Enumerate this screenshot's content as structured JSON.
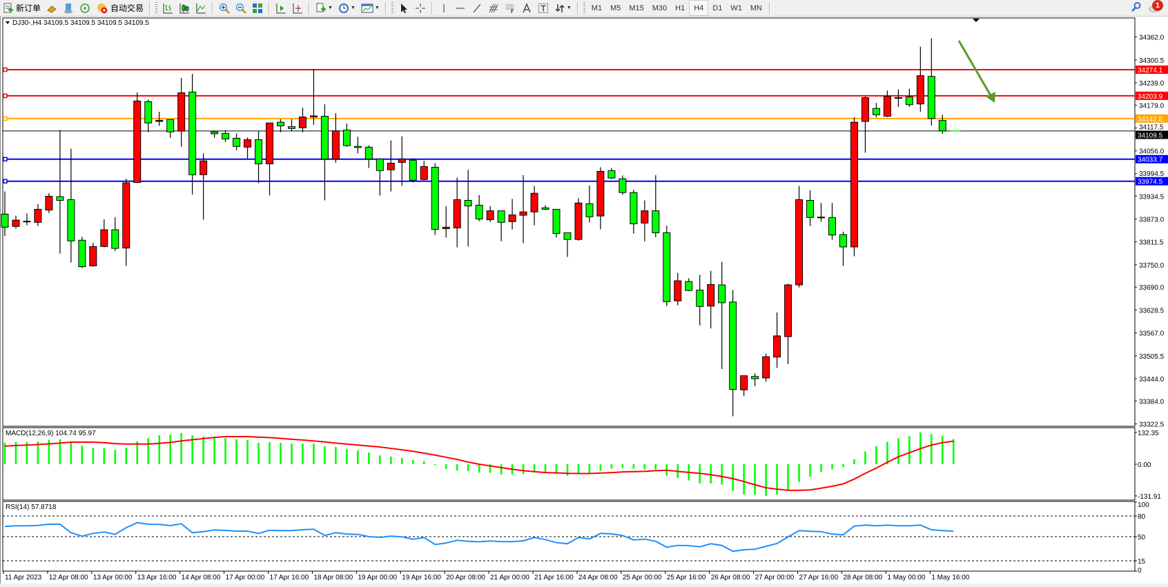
{
  "toolbar": {
    "new_order_label": "新订单",
    "auto_trade_label": "自动交易",
    "timeframes": [
      "M1",
      "M5",
      "M15",
      "M30",
      "H1",
      "H4",
      "D1",
      "W1",
      "MN"
    ],
    "active_timeframe": "H4",
    "notification_count": "1",
    "icons": [
      "new-order-icon",
      "gold-icon",
      "history-icon",
      "signals-icon",
      "auto-trade-icon",
      "bar-chart-icon",
      "candlestick-icon",
      "line-chart-icon",
      "zoom-in-icon",
      "zoom-out-icon",
      "tile-windows-icon",
      "auto-scroll-icon",
      "chart-shift-icon",
      "indicators-icon",
      "periods-icon",
      "templates-icon",
      "cursor-icon",
      "crosshair-icon",
      "vertical-line-icon",
      "horizontal-line-icon",
      "trendline-icon",
      "fibonacci-icon",
      "fibo-fan-icon",
      "text-icon",
      "text-label-icon",
      "arrows-icon",
      "search-icon",
      "notification-icon"
    ]
  },
  "chart_header": {
    "symbol": "DJ30-,H4",
    "ohlc": "34109.5 34109.5 34109.5 34109.5"
  },
  "price_axis": {
    "ticks": [
      "34362.0",
      "34300.5",
      "34239.0",
      "34179.0",
      "34117.5",
      "34056.0",
      "33994.5",
      "33934.5",
      "33873.0",
      "33811.5",
      "33750.0",
      "33690.0",
      "33628.5",
      "33567.0",
      "33505.5",
      "33444.0",
      "33384.0",
      "33322.5"
    ]
  },
  "levels": [
    {
      "value": "34274.1",
      "color": "#ff0000"
    },
    {
      "value": "34203.9",
      "color": "#ff0000"
    },
    {
      "value": "34142.8",
      "color": "#ffa500"
    },
    {
      "value": "34109.5",
      "color": "#000000"
    },
    {
      "value": "34033.7",
      "color": "#0000ff"
    },
    {
      "value": "33974.5",
      "color": "#0000ff"
    }
  ],
  "colors": {
    "bull": "#ff0000",
    "bear": "#00ff00",
    "rsi": "#1e90ff",
    "signal": "#ff0000",
    "histogram": "#00ff00",
    "arrow": "#5a9a2a"
  },
  "time_axis": [
    "11 Apr 2023",
    "12 Apr 08:00",
    "13 Apr 00:00",
    "13 Apr 16:00",
    "14 Apr 08:00",
    "17 Apr 00:00",
    "17 Apr 16:00",
    "18 Apr 08:00",
    "19 Apr 00:00",
    "19 Apr 16:00",
    "20 Apr 08:00",
    "21 Apr 00:00",
    "21 Apr 16:00",
    "24 Apr 08:00",
    "25 Apr 00:00",
    "25 Apr 16:00",
    "26 Apr 08:00",
    "27 Apr 00:00",
    "27 Apr 16:00",
    "28 Apr 08:00",
    "1 May 00:00",
    "1 May 16:00"
  ],
  "macd": {
    "label": "MACD(12,26,9) 104.74 95.97",
    "axis": [
      "132.35",
      "0.00",
      "-131.91"
    ]
  },
  "rsi": {
    "label": "RSI(14) 57.8718",
    "axis": [
      "100",
      "80",
      "50",
      "15",
      "0"
    ],
    "levels": [
      80,
      50,
      15
    ]
  },
  "chart_data": {
    "type": "candlestick",
    "ylim": [
      33322.5,
      34362.0
    ],
    "ohlc": [
      [
        33886,
        33947,
        33827,
        33851
      ],
      [
        33853,
        33882,
        33847,
        33870
      ],
      [
        33867,
        33888,
        33856,
        33867
      ],
      [
        33864,
        33913,
        33854,
        33899
      ],
      [
        33897,
        33942,
        33889,
        33934
      ],
      [
        33933,
        34112,
        33780,
        33923
      ],
      [
        33925,
        34062,
        33756,
        33814
      ],
      [
        33816,
        33825,
        33741,
        33745
      ],
      [
        33747,
        33809,
        33745,
        33799
      ],
      [
        33799,
        33872,
        33797,
        33844
      ],
      [
        33844,
        33878,
        33787,
        33794
      ],
      [
        33795,
        33981,
        33747,
        33970
      ],
      [
        33971,
        34213,
        33971,
        34190
      ],
      [
        34188,
        34194,
        34106,
        34131
      ],
      [
        34135,
        34161,
        34123,
        34138
      ],
      [
        34140,
        34140,
        34091,
        34107
      ],
      [
        34109,
        34252,
        34067,
        34212
      ],
      [
        34214,
        34263,
        33939,
        33992
      ],
      [
        33992,
        34049,
        33871,
        34029
      ],
      [
        34107,
        34107,
        34091,
        34102
      ],
      [
        34103,
        34112,
        34080,
        34088
      ],
      [
        34090,
        34103,
        34058,
        34068
      ],
      [
        34066,
        34092,
        34035,
        34086
      ],
      [
        34086,
        34110,
        33969,
        34021
      ],
      [
        34021,
        34131,
        33936,
        34131
      ],
      [
        34133,
        34141,
        34106,
        34123
      ],
      [
        34121,
        34141,
        34109,
        34116
      ],
      [
        34118,
        34172,
        34106,
        34147
      ],
      [
        34147,
        34276,
        34126,
        34150
      ],
      [
        34149,
        34181,
        33923,
        34034
      ],
      [
        34034,
        34157,
        34024,
        34110
      ],
      [
        34112,
        34129,
        34067,
        34070
      ],
      [
        34068,
        34094,
        34049,
        34065
      ],
      [
        34066,
        34071,
        34010,
        34034
      ],
      [
        34034,
        34036,
        33936,
        34003
      ],
      [
        34005,
        34084,
        33947,
        34023
      ],
      [
        34025,
        34095,
        33962,
        34034
      ],
      [
        34031,
        34031,
        33971,
        33977
      ],
      [
        33979,
        34029,
        33977,
        34014
      ],
      [
        34012,
        34023,
        33830,
        33845
      ],
      [
        33847,
        33907,
        33823,
        33851
      ],
      [
        33849,
        33984,
        33797,
        33925
      ],
      [
        33923,
        34005,
        33799,
        33908
      ],
      [
        33910,
        33937,
        33867,
        33873
      ],
      [
        33871,
        33908,
        33865,
        33895
      ],
      [
        33895,
        33895,
        33813,
        33864
      ],
      [
        33866,
        33927,
        33845,
        33884
      ],
      [
        33883,
        33991,
        33808,
        33892
      ],
      [
        33892,
        33962,
        33856,
        33942
      ],
      [
        33903,
        33910,
        33897,
        33899
      ],
      [
        33899,
        33899,
        33823,
        33834
      ],
      [
        33836,
        33836,
        33771,
        33818
      ],
      [
        33818,
        33929,
        33815,
        33916
      ],
      [
        33914,
        33963,
        33864,
        33879
      ],
      [
        33881,
        34012,
        33845,
        34001
      ],
      [
        34003,
        34010,
        33980,
        33983
      ],
      [
        33981,
        33990,
        33938,
        33944
      ],
      [
        33944,
        33952,
        33834,
        33860
      ],
      [
        33862,
        33923,
        33813,
        33895
      ],
      [
        33895,
        33991,
        33824,
        33836
      ],
      [
        33836,
        33855,
        33639,
        33651
      ],
      [
        33653,
        33728,
        33641,
        33707
      ],
      [
        33705,
        33714,
        33679,
        33681
      ],
      [
        33682,
        33723,
        33587,
        33638
      ],
      [
        33639,
        33734,
        33579,
        33697
      ],
      [
        33696,
        33758,
        33470,
        33648
      ],
      [
        33650,
        33682,
        33343,
        33415
      ],
      [
        33414,
        33452,
        33397,
        33452
      ],
      [
        33450,
        33458,
        33424,
        33444
      ],
      [
        33446,
        33511,
        33436,
        33503
      ],
      [
        33502,
        33622,
        33473,
        33559
      ],
      [
        33557,
        33699,
        33483,
        33696
      ],
      [
        33696,
        33962,
        33689,
        33925
      ],
      [
        33923,
        33950,
        33854,
        33877
      ],
      [
        33878,
        33916,
        33866,
        33878
      ],
      [
        33877,
        33916,
        33817,
        33830
      ],
      [
        33831,
        33839,
        33747,
        33798
      ],
      [
        33798,
        34146,
        33773,
        34133
      ],
      [
        34135,
        34202,
        34051,
        34199
      ],
      [
        34170,
        34185,
        34146,
        34153
      ],
      [
        34149,
        34218,
        34147,
        34202
      ],
      [
        34199,
        34221,
        34174,
        34198
      ],
      [
        34201,
        34223,
        34174,
        34180
      ],
      [
        34182,
        34336,
        34161,
        34258
      ],
      [
        34256,
        34358,
        34124,
        34143
      ],
      [
        34138,
        34153,
        34102,
        34109.5
      ],
      [
        34109.5,
        34109.5,
        34109.5,
        34109.5
      ]
    ],
    "macd_main": [
      89,
      92,
      92,
      95,
      101,
      104,
      89,
      78,
      69,
      66,
      60,
      69,
      95,
      109,
      121,
      124,
      130,
      121,
      115,
      112,
      109,
      104,
      101,
      89,
      92,
      89,
      86,
      86,
      86,
      75,
      72,
      63,
      58,
      49,
      37,
      32,
      26,
      17,
      14,
      -4,
      -20,
      -26,
      -29,
      -35,
      -36,
      -43,
      -43,
      -41,
      -34,
      -36,
      -41,
      -48,
      -36,
      -36,
      -28,
      -19,
      -16,
      -19,
      -22,
      -22,
      -48,
      -57,
      -68,
      -80,
      -80,
      -85,
      -112,
      -126,
      -128,
      -131.91,
      -127,
      -110,
      -74,
      -52,
      -33,
      -21,
      -12,
      21,
      53,
      75,
      94,
      108,
      117,
      132.35,
      125,
      119,
      104.74
    ],
    "macd_signal": [
      75,
      78,
      80,
      82,
      85,
      88,
      92,
      92,
      92,
      90,
      86,
      84,
      84,
      84,
      87,
      91,
      97,
      102,
      107,
      112,
      115,
      115,
      115,
      113,
      111,
      108,
      104,
      101,
      97,
      93,
      88,
      84,
      80,
      76,
      72,
      66,
      60,
      54,
      46,
      38,
      29,
      20,
      9,
      0,
      -7,
      -14,
      -21,
      -27,
      -31,
      -35,
      -36,
      -38,
      -39,
      -39,
      -37,
      -35,
      -32,
      -31,
      -30,
      -27,
      -25,
      -30,
      -34,
      -38,
      -44,
      -51,
      -60,
      -72,
      -86,
      -98,
      -104,
      -109,
      -109,
      -107,
      -100,
      -92,
      -82,
      -62,
      -38,
      -16,
      8,
      31,
      48,
      65,
      80,
      90,
      95.97
    ],
    "rsi": [
      64.7,
      65.7,
      65.7,
      66.3,
      68,
      68,
      55.7,
      50.7,
      54.7,
      56.7,
      53.3,
      63,
      70.3,
      68,
      67.7,
      66,
      68.7,
      55.7,
      57.3,
      59.7,
      59,
      58,
      58,
      54.7,
      59.3,
      58.7,
      58.7,
      60,
      60.7,
      51.7,
      55.7,
      53.7,
      53.3,
      50,
      49,
      50.7,
      49.7,
      46.3,
      48.7,
      38.7,
      40.7,
      44.7,
      43.3,
      42.5,
      43.7,
      42.7,
      42.7,
      44,
      48.7,
      45.7,
      41.3,
      39.7,
      48.7,
      46.7,
      54.7,
      54,
      51.7,
      45.3,
      46.3,
      43.3,
      34.7,
      37.3,
      37,
      35.3,
      39.7,
      37.3,
      28.7,
      31,
      31.7,
      36,
      40,
      49.7,
      58.7,
      57.7,
      57.3,
      53.7,
      52.7,
      65.3,
      66.7,
      65.7,
      66.7,
      65.7,
      65.7,
      66.7,
      60,
      58.7,
      57.87
    ]
  }
}
